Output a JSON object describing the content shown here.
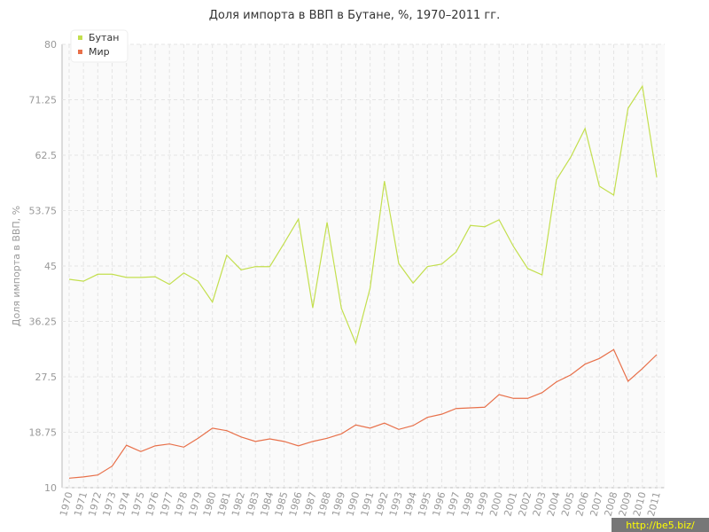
{
  "chart_data": {
    "type": "line",
    "title": "Доля импорта в ВВП в Бутане, %, 1970–2011 гг.",
    "y_label": "Доля импорта в ВВП, %",
    "watermark": "http://be5.biz/",
    "categories": [
      "1970",
      "1971",
      "1972",
      "1973",
      "1974",
      "1975",
      "1976",
      "1977",
      "1978",
      "1979",
      "1980",
      "1981",
      "1982",
      "1983",
      "1984",
      "1985",
      "1986",
      "1987",
      "1988",
      "1989",
      "1990",
      "1991",
      "1992",
      "1993",
      "1994",
      "1995",
      "1996",
      "1997",
      "1998",
      "1999",
      "2000",
      "2001",
      "2002",
      "2003",
      "2004",
      "2005",
      "2006",
      "2007",
      "2008",
      "2009",
      "2010",
      "2011"
    ],
    "series": [
      {
        "name": "Бутан",
        "color": "#c3df4e",
        "values": [
          42.9,
          42.6,
          43.7,
          43.7,
          43.2,
          43.2,
          43.3,
          42.1,
          43.9,
          42.6,
          39.3,
          46.7,
          44.4,
          44.9,
          44.9,
          48.6,
          52.4,
          38.4,
          51.9,
          38.3,
          32.8,
          41.5,
          58.4,
          45.4,
          42.3,
          44.9,
          45.3,
          47.2,
          51.4,
          51.2,
          52.3,
          48.1,
          44.6,
          43.6,
          58.6,
          62.2,
          66.7,
          57.6,
          56.2,
          69.9,
          73.4,
          59.0
        ]
      },
      {
        "name": "Мир",
        "color": "#e8704a",
        "values": [
          11.5,
          11.7,
          12.0,
          13.4,
          16.7,
          15.7,
          16.6,
          16.9,
          16.4,
          17.8,
          19.4,
          19.0,
          18.0,
          17.3,
          17.7,
          17.3,
          16.6,
          17.3,
          17.8,
          18.5,
          19.9,
          19.4,
          20.2,
          19.2,
          19.8,
          21.1,
          21.6,
          22.5,
          22.6,
          22.7,
          24.7,
          24.1,
          24.1,
          25.0,
          26.7,
          27.8,
          29.5,
          30.4,
          31.8,
          26.8,
          28.8,
          31.0
        ]
      }
    ],
    "ylim": [
      10,
      80
    ],
    "yticks": [
      10,
      18.75,
      27.5,
      36.25,
      45,
      53.75,
      62.5,
      71.25,
      80
    ],
    "grid": true
  }
}
